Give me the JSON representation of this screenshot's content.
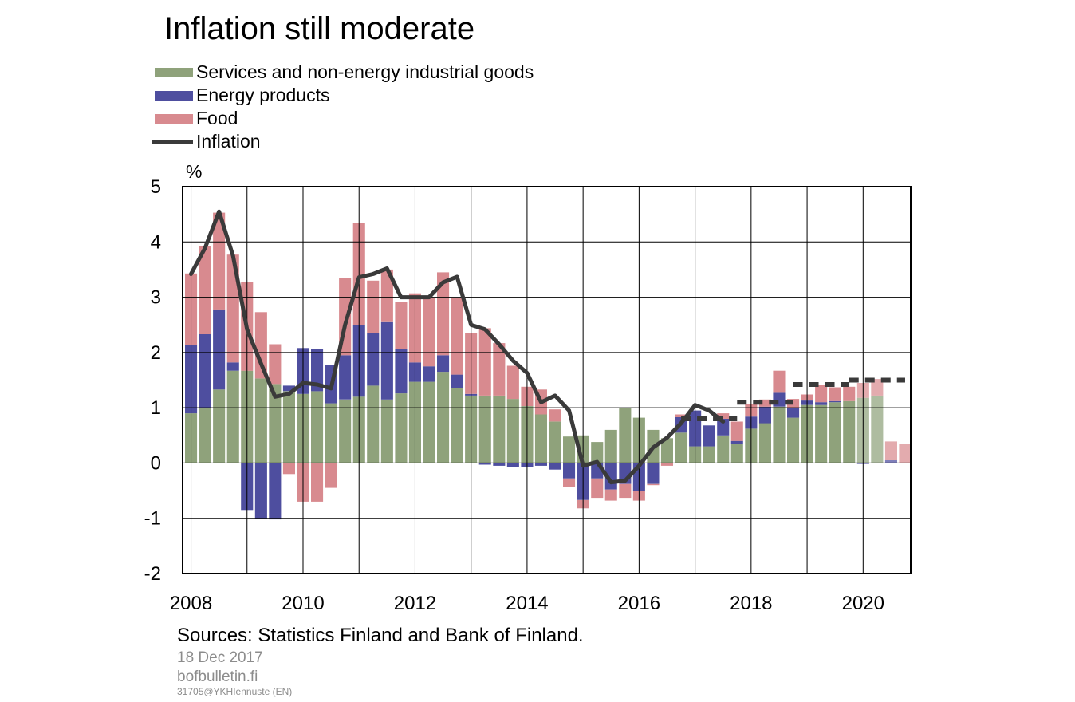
{
  "chart_data": {
    "type": "bar",
    "title": "Inflation still moderate",
    "ylabel": "%",
    "ylim": [
      -2,
      5
    ],
    "yticks": [
      5,
      4,
      3,
      2,
      1,
      0,
      -1,
      -2
    ],
    "xlim": [
      2007.85,
      2020.85
    ],
    "xticks": [
      2008,
      2010,
      2012,
      2014,
      2016,
      2018,
      2020
    ],
    "grid": true,
    "legend_position": "top-left",
    "forecast_from_index": 48,
    "colors": {
      "services": "#8fa27b",
      "energy": "#4e4e9f",
      "food": "#d88a8f",
      "inflation": "#3a3a3a"
    },
    "x": [
      2008.0,
      2008.25,
      2008.5,
      2008.75,
      2009.0,
      2009.25,
      2009.5,
      2009.75,
      2010.0,
      2010.25,
      2010.5,
      2010.75,
      2011.0,
      2011.25,
      2011.5,
      2011.75,
      2012.0,
      2012.25,
      2012.5,
      2012.75,
      2013.0,
      2013.25,
      2013.5,
      2013.75,
      2014.0,
      2014.25,
      2014.5,
      2014.75,
      2015.0,
      2015.25,
      2015.5,
      2015.75,
      2016.0,
      2016.25,
      2016.5,
      2016.75,
      2017.0,
      2017.25,
      2017.5,
      2017.75,
      2018.0,
      2018.25,
      2018.5,
      2018.75,
      2019.0,
      2019.25,
      2019.5,
      2019.75,
      2020.0,
      2020.25,
      2020.5,
      2020.75
    ],
    "series": [
      {
        "name": "Services and non-energy industrial goods",
        "values": [
          0.9,
          1.0,
          1.33,
          1.67,
          1.67,
          1.53,
          1.43,
          1.3,
          1.25,
          1.3,
          1.08,
          1.15,
          1.2,
          1.4,
          1.15,
          1.26,
          1.47,
          1.47,
          1.65,
          1.35,
          1.22,
          1.22,
          1.22,
          1.16,
          1.03,
          0.88,
          0.75,
          0.48,
          0.5,
          0.38,
          0.6,
          1.0,
          0.82,
          0.6,
          0.45,
          0.55,
          0.3,
          0.3,
          0.5,
          0.35,
          0.62,
          0.72,
          1.02,
          0.82,
          1.05,
          1.05,
          1.1,
          1.12,
          1.18,
          1.22,
          null,
          null
        ]
      },
      {
        "name": "Energy products",
        "values": [
          1.23,
          1.33,
          1.45,
          0.15,
          -0.85,
          -1.0,
          -1.02,
          0.1,
          0.83,
          0.77,
          0.7,
          0.8,
          1.3,
          0.95,
          1.4,
          0.8,
          0.35,
          0.28,
          0.3,
          0.25,
          0.03,
          -0.03,
          -0.05,
          -0.08,
          -0.08,
          -0.05,
          -0.12,
          -0.28,
          -0.67,
          -0.28,
          -0.48,
          -0.38,
          -0.5,
          -0.38,
          0.0,
          0.28,
          0.65,
          0.38,
          0.3,
          0.05,
          0.22,
          0.3,
          0.25,
          0.18,
          0.08,
          0.05,
          0.02,
          0.0,
          -0.02,
          0.0,
          0.05,
          null
        ]
      },
      {
        "name": "Food",
        "values": [
          1.3,
          1.6,
          1.75,
          1.95,
          1.6,
          1.2,
          0.72,
          -0.2,
          -0.7,
          -0.7,
          -0.45,
          1.4,
          1.85,
          0.95,
          0.95,
          0.85,
          1.25,
          1.25,
          1.5,
          1.4,
          1.1,
          1.22,
          0.95,
          0.6,
          0.35,
          0.45,
          0.22,
          -0.15,
          -0.15,
          -0.35,
          -0.2,
          -0.25,
          -0.18,
          -0.02,
          -0.05,
          0.05,
          0.0,
          0.0,
          0.1,
          0.35,
          0.22,
          0.13,
          0.4,
          0.16,
          0.11,
          0.32,
          0.25,
          0.26,
          0.27,
          0.3,
          0.34,
          0.35
        ]
      },
      {
        "name": "Inflation",
        "values": [
          3.42,
          3.89,
          4.55,
          3.75,
          2.42,
          1.8,
          1.2,
          1.25,
          1.45,
          1.42,
          1.35,
          2.5,
          3.36,
          3.42,
          3.52,
          3.0,
          3.0,
          3.0,
          3.27,
          3.37,
          2.5,
          2.42,
          2.15,
          1.85,
          1.63,
          1.1,
          1.22,
          0.95,
          -0.05,
          0.02,
          -0.35,
          -0.32,
          -0.05,
          0.28,
          0.46,
          0.72,
          1.05,
          0.95,
          0.75,
          null,
          null,
          null,
          null,
          null,
          null,
          null,
          null,
          null,
          null,
          null,
          null,
          null
        ]
      }
    ],
    "forecast": [
      {
        "from": 2016.75,
        "to": 2017.75,
        "value": 0.8
      },
      {
        "from": 2017.75,
        "to": 2018.75,
        "value": 1.1
      },
      {
        "from": 2018.75,
        "to": 2019.75,
        "value": 1.42
      },
      {
        "from": 2019.75,
        "to": 2020.75,
        "value": 1.5
      }
    ]
  },
  "source": "Sources: Statistics Finland and Bank of Finland.",
  "date": "18 Dec 2017",
  "site": "bofbulletin.fi",
  "code": "31705@YKHIennuste (EN)"
}
